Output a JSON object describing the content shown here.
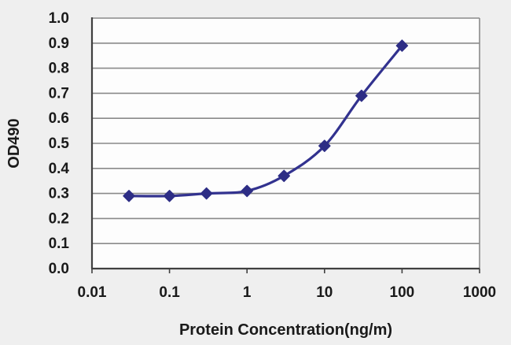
{
  "chart_data": {
    "type": "line",
    "title": "",
    "xlabel": "Protein Concentration(ng/m)",
    "ylabel": "OD490",
    "x_scale": "log",
    "y_scale": "linear",
    "xlim": [
      0.01,
      1000
    ],
    "ylim": [
      0.0,
      1.0
    ],
    "grid": "horizontal",
    "legend_position": "none",
    "marker": "diamond",
    "x": [
      0.03,
      0.1,
      0.3,
      1,
      3,
      10,
      30,
      100
    ],
    "y": [
      0.29,
      0.29,
      0.3,
      0.31,
      0.37,
      0.49,
      0.69,
      0.89
    ],
    "series": [
      {
        "name": "OD490",
        "marker": "diamond",
        "color": "#32328f"
      }
    ],
    "x_ticks": [
      {
        "value": 0.01,
        "label": "0.01"
      },
      {
        "value": 0.1,
        "label": "0.1"
      },
      {
        "value": 1,
        "label": "1"
      },
      {
        "value": 10,
        "label": "10"
      },
      {
        "value": 100,
        "label": "100"
      },
      {
        "value": 1000,
        "label": "1000"
      }
    ],
    "y_ticks": [
      {
        "value": 0.0,
        "label": "0.0"
      },
      {
        "value": 0.1,
        "label": "0.1"
      },
      {
        "value": 0.2,
        "label": "0.2"
      },
      {
        "value": 0.3,
        "label": "0.3"
      },
      {
        "value": 0.4,
        "label": "0.4"
      },
      {
        "value": 0.5,
        "label": "0.5"
      },
      {
        "value": 0.6,
        "label": "0.6"
      },
      {
        "value": 0.7,
        "label": "0.7"
      },
      {
        "value": 0.8,
        "label": "0.8"
      },
      {
        "value": 0.9,
        "label": "0.9"
      },
      {
        "value": 1.0,
        "label": "1.0"
      }
    ],
    "colors": {
      "line": "#32328f",
      "marker": "#2d2d85",
      "grid": "#8a8a8a",
      "axis": "#404040",
      "text": "#1a1a1a",
      "plot_bg": "#fdfdfd",
      "page_bg": "#efefef"
    }
  }
}
